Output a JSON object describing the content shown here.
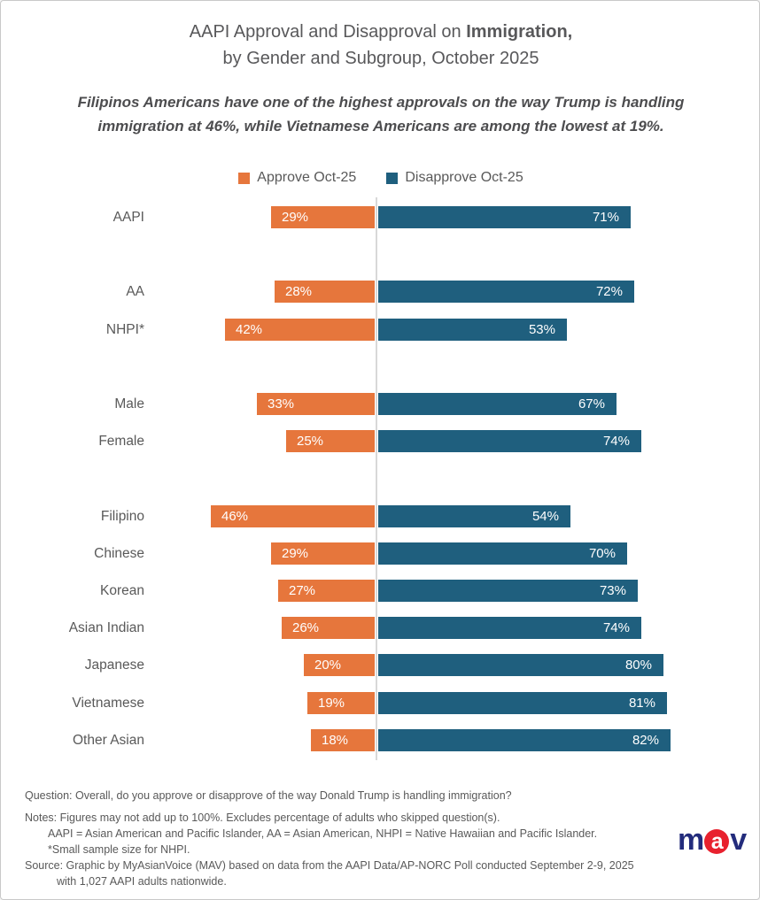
{
  "title": {
    "line1_regular": "AAPI Approval and Disapproval on ",
    "line1_bold": "Immigration,",
    "line2": "by Gender and Subgroup, October 2025"
  },
  "subtitle": "Filipinos Americans have one of the highest approvals on the way Trump is handling immigration at 46%, while Vietnamese Americans are among the lowest at 19%.",
  "legend": {
    "items": [
      {
        "label": "Approve Oct-25",
        "color": "#E6763C"
      },
      {
        "label": "Disapprove Oct-25",
        "color": "#1F5F7E"
      }
    ]
  },
  "chart_data": {
    "type": "bar",
    "variant": "horizontal-diverging",
    "title": "AAPI Approval and Disapproval on Immigration, by Gender and Subgroup, October 2025",
    "categories": [
      "AAPI",
      "AA",
      "NHPI*",
      "Male",
      "Female",
      "Filipino",
      "Chinese",
      "Korean",
      "Asian Indian",
      "Japanese",
      "Vietnamese",
      "Other Asian"
    ],
    "group_breaks": [
      1,
      3,
      5
    ],
    "series": [
      {
        "name": "Approve Oct-25",
        "color": "#E6763C",
        "values": [
          29,
          28,
          42,
          33,
          25,
          46,
          29,
          27,
          26,
          20,
          19,
          18
        ]
      },
      {
        "name": "Disapprove Oct-25",
        "color": "#1F5F7E",
        "values": [
          71,
          72,
          53,
          67,
          74,
          54,
          70,
          73,
          74,
          80,
          81,
          82
        ]
      }
    ],
    "value_suffix": "%",
    "xlim": [
      -50,
      85
    ],
    "axis": {
      "center_divider": true,
      "ticks": false,
      "grid": false
    },
    "legend_position": "top-center",
    "divider_color": "#D8D8D8"
  },
  "footer": {
    "question": "Question: Overall, do you approve or disapprove of the way Donald Trump is handling immigration?",
    "notes_line1": "Notes: Figures may not add up to 100%. Excludes percentage of adults who skipped question(s).",
    "notes_line2": "AAPI = Asian American and Pacific Islander, AA = Asian American, NHPI = Native Hawaiian and Pacific Islander.",
    "notes_line3": "*Small sample size for NHPI.",
    "source_line1": "Source: Graphic by MyAsianVoice (MAV) based on data from the AAPI Data/AP-NORC Poll conducted September 2-9, 2025",
    "source_line2": "with 1,027 AAPI adults nationwide."
  },
  "logo": {
    "m": "m",
    "a": "a",
    "v": "v",
    "circle_color": "#E8212E",
    "letter_color": "#232C7C"
  }
}
